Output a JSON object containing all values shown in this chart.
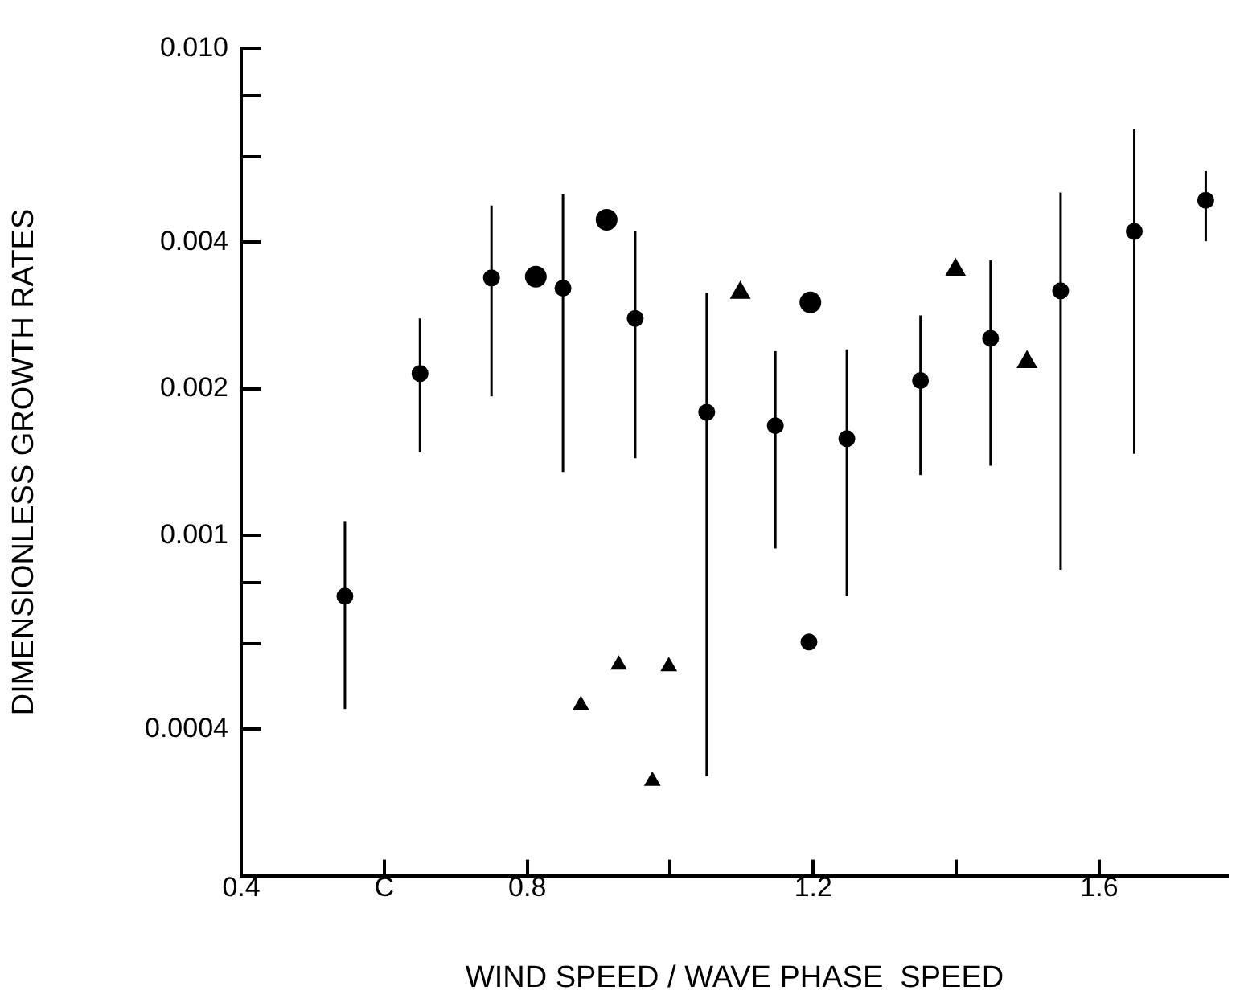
{
  "chart_data": {
    "type": "scatter",
    "xlabel": "WIND SPEED / WAVE PHASE  SPEED",
    "ylabel": "DIMENSIONLESS GROWTH RATES",
    "log": "y",
    "xlim": [
      0.4,
      1.78
    ],
    "ylim": [
      0.0002,
      0.01
    ],
    "xticks": [
      0.4,
      {
        "value": 0.6,
        "label": "C"
      },
      0.8,
      {
        "value": 1.0,
        "label": null
      },
      1.2,
      {
        "value": 1.4,
        "label": null
      },
      1.6
    ],
    "yticks": [
      0.0004,
      {
        "value": 0.0006,
        "label": null
      },
      {
        "value": 0.0008,
        "label": null
      },
      0.001,
      0.002,
      0.004,
      {
        "value": 0.006,
        "label": null
      },
      {
        "value": 0.008,
        "label": null
      },
      {
        "value": 0.01,
        "label": "0.010"
      }
    ],
    "series": [
      {
        "color": "#000000",
        "marker": "circle",
        "x": [
          0.545,
          0.65,
          0.75,
          0.85,
          0.951,
          1.051,
          1.147,
          1.247,
          1.35,
          1.448,
          1.546,
          1.649,
          1.749
        ],
        "values": [
          0.00075,
          0.00215,
          0.00338,
          0.00322,
          0.00279,
          0.00179,
          0.00168,
          0.00158,
          0.00208,
          0.00254,
          0.00318,
          0.00421,
          0.00488
        ],
        "errors": [
          [
            0.00044,
            0.00107
          ],
          [
            0.00148,
            0.00279
          ],
          [
            0.00193,
            0.00476
          ],
          [
            0.00135,
            0.00502
          ],
          [
            0.00144,
            0.00421
          ],
          [
            0.00032,
            0.00315
          ],
          [
            0.00094,
            0.00239
          ],
          [
            0.00075,
            0.00241
          ],
          [
            0.00133,
            0.00283
          ],
          [
            0.00139,
            0.00367
          ],
          [
            0.00085,
            0.00506
          ],
          [
            0.00147,
            0.00682
          ],
          [
            0.00402,
            0.0056
          ]
        ]
      },
      {
        "color": "#000000",
        "marker": "circle",
        "x": [
          0.812,
          0.911,
          1.196
        ],
        "values": [
          0.0034,
          0.00445,
          0.00301
        ]
      },
      {
        "color": "#000000",
        "marker": "triangle",
        "x": [
          1.098,
          1.399,
          1.499
        ],
        "values": [
          0.00315,
          0.00351,
          0.00227
        ]
      },
      {
        "color": "#000000",
        "marker": "triangle",
        "x": [
          0.875,
          0.928,
          0.998,
          0.975
        ],
        "values": [
          0.000448,
          0.000542,
          0.000538,
          0.000313
        ]
      },
      {
        "color": "#000000",
        "marker": "circle",
        "x": [
          1.194
        ],
        "values": [
          0.000604
        ]
      }
    ]
  }
}
